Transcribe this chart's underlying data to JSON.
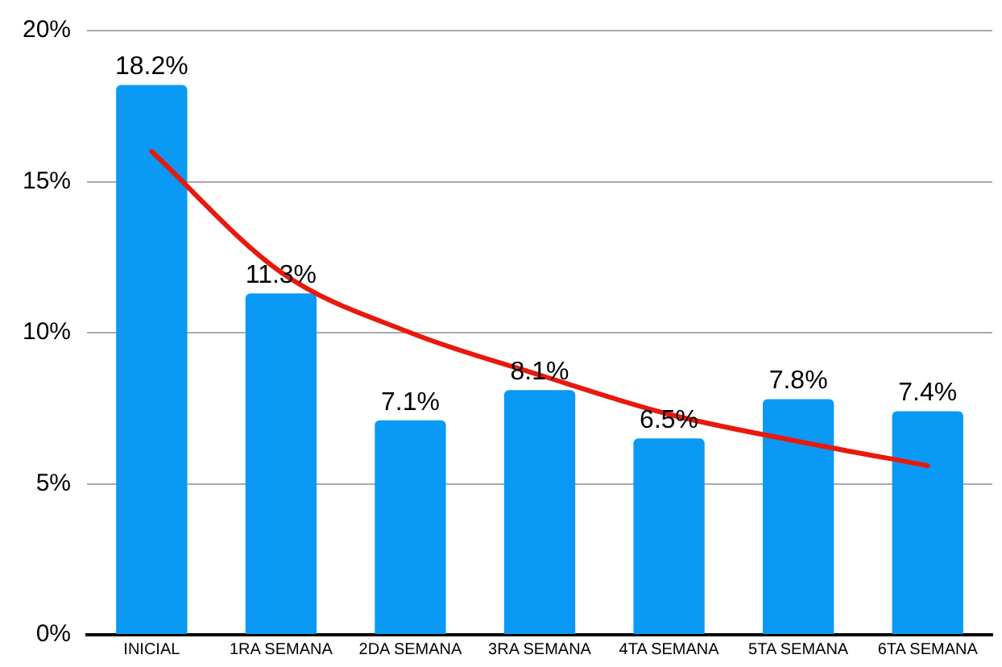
{
  "chart_data": {
    "type": "bar",
    "categories": [
      "INICIAL",
      "1RA SEMANA",
      "2DA SEMANA",
      "3RA SEMANA",
      "4TA SEMANA",
      "5TA SEMANA",
      "6TA SEMANA"
    ],
    "series": [
      {
        "color": "#0a9af6",
        "values": [
          18.2,
          11.3,
          7.1,
          8.1,
          6.5,
          7.8,
          7.4
        ],
        "value_labels": [
          "18.2%",
          "11.3%",
          "7.1%",
          "8.1%",
          "6.5%",
          "7.8%",
          "7.4%"
        ]
      },
      {
        "type": "line",
        "color": "#e8190c",
        "values": [
          16.0,
          12.0,
          10.0,
          8.6,
          7.3,
          6.4,
          5.6
        ]
      }
    ],
    "ylim": [
      0,
      20
    ],
    "yticks": [
      {
        "value": 0,
        "label": "0%"
      },
      {
        "value": 5,
        "label": "5%"
      },
      {
        "value": 10,
        "label": "10%"
      },
      {
        "value": 15,
        "label": "15%"
      },
      {
        "value": 20,
        "label": "20%"
      }
    ],
    "grid": "y",
    "legend": false,
    "marker": "none"
  }
}
